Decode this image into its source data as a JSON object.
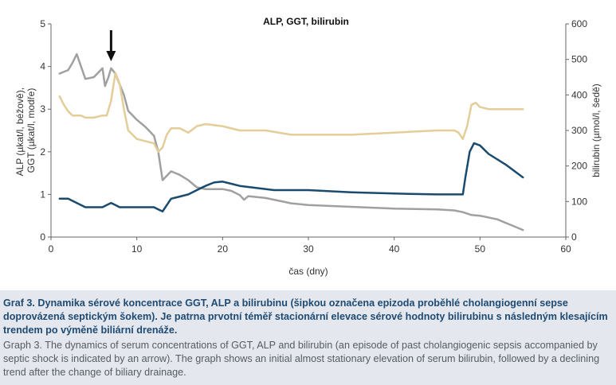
{
  "chart_data": {
    "type": "line",
    "title": "ALP, GGT, bilirubin",
    "xlabel": "čas (dny)",
    "ylabel_left": "ALP (µkat/l, béžově) GGT (µkat/l, modře)",
    "ylabel_left_line1": "ALP (µkat/l, béžově),",
    "ylabel_left_line2": "GGT (µkat/l, modře)",
    "ylabel_right": "bilirubin (µmol/l, šedě)",
    "xlim": [
      0,
      60
    ],
    "ylim_left": [
      0,
      5
    ],
    "ylim_right": [
      0,
      600
    ],
    "x_ticks": [
      "0",
      "10",
      "20",
      "30",
      "40",
      "50",
      "60"
    ],
    "y_left_ticks": [
      "0",
      "1",
      "2",
      "3",
      "4",
      "5"
    ],
    "y_right_ticks": [
      "0",
      "100",
      "200",
      "300",
      "400",
      "500",
      "600"
    ],
    "grid": false,
    "annotation": {
      "type": "arrow",
      "x": 7,
      "label": ""
    },
    "series": [
      {
        "key": "alp",
        "axis": "left",
        "color": "#e3cd98",
        "x": [
          1,
          1.5,
          2,
          2.5,
          3,
          3.5,
          4,
          5,
          6,
          6.5,
          7,
          7.5,
          8,
          8.5,
          9,
          10,
          11,
          12,
          12.5,
          13,
          13.5,
          14,
          15,
          16,
          17,
          18,
          20,
          22,
          25,
          28,
          30,
          35,
          40,
          45,
          47,
          47.5,
          48,
          48.5,
          49,
          49.5,
          50,
          51,
          52,
          55
        ],
        "y": [
          3.3,
          3.1,
          2.95,
          2.85,
          2.85,
          2.85,
          2.8,
          2.8,
          2.85,
          2.85,
          3.2,
          3.85,
          3.6,
          3.0,
          2.5,
          2.3,
          2.25,
          2.2,
          2.0,
          2.1,
          2.4,
          2.55,
          2.55,
          2.45,
          2.6,
          2.65,
          2.6,
          2.5,
          2.5,
          2.4,
          2.4,
          2.4,
          2.45,
          2.5,
          2.5,
          2.45,
          2.3,
          2.6,
          3.1,
          3.15,
          3.05,
          3.0,
          3.0,
          3.0
        ]
      },
      {
        "key": "ggt",
        "axis": "left",
        "color": "#1a4a6e",
        "x": [
          1,
          2,
          3,
          4,
          5,
          6,
          6.5,
          7,
          7.5,
          8,
          9,
          10,
          11,
          12,
          12.5,
          13,
          14,
          15,
          16,
          17,
          18,
          19,
          20,
          21,
          22,
          24,
          26,
          28,
          30,
          35,
          40,
          45,
          47,
          48,
          48.3,
          48.8,
          49.3,
          50,
          51,
          53,
          55
        ],
        "y": [
          0.9,
          0.9,
          0.8,
          0.7,
          0.7,
          0.7,
          0.75,
          0.8,
          0.75,
          0.7,
          0.7,
          0.7,
          0.7,
          0.7,
          0.65,
          0.6,
          0.9,
          0.95,
          1.0,
          1.1,
          1.2,
          1.28,
          1.3,
          1.25,
          1.2,
          1.15,
          1.1,
          1.1,
          1.1,
          1.05,
          1.02,
          1.0,
          1.0,
          1.0,
          1.4,
          2.0,
          2.2,
          2.15,
          1.95,
          1.7,
          1.4
        ]
      },
      {
        "key": "bilirubin",
        "axis": "right",
        "color": "#a0a0a0",
        "x": [
          1,
          2,
          2.5,
          3,
          3.5,
          4,
          5,
          6,
          6.3,
          6.7,
          7,
          7.5,
          8,
          8.5,
          9,
          10,
          11,
          12,
          12.5,
          13,
          14,
          15,
          16,
          17,
          18,
          19,
          20,
          21,
          22,
          22.5,
          23,
          25,
          28,
          30,
          35,
          40,
          45,
          47,
          48,
          49,
          50,
          52,
          55
        ],
        "y": [
          460,
          470,
          490,
          515,
          480,
          445,
          450,
          475,
          425,
          450,
          475,
          460,
          430,
          400,
          355,
          330,
          310,
          285,
          240,
          160,
          185,
          175,
          160,
          140,
          135,
          135,
          135,
          130,
          118,
          105,
          115,
          110,
          95,
          90,
          85,
          80,
          78,
          75,
          70,
          62,
          60,
          50,
          20
        ]
      }
    ]
  },
  "caption": {
    "bold": "Graf 3. Dynamika sérové koncentrace GGT, ALP a bilirubinu (šipkou označena epizoda proběhlé cholangiogenní sepse doprovázená septickým šokem). Je patrna prvotní téměř stacionární elevace sérové hodnoty bilirubinu s následným klesajícím trendem po výměně biliární drenáže.",
    "english": "Graph 3. The dynamics of serum concentrations of GGT, ALP and bilirubin (an episode of past cholangiogenic sepsis accompanied by septic shock is indicated by an arrow). The graph shows an initial almost stationary elevation of serum bilirubin, followed by a declining trend after the change of biliary drainage."
  }
}
